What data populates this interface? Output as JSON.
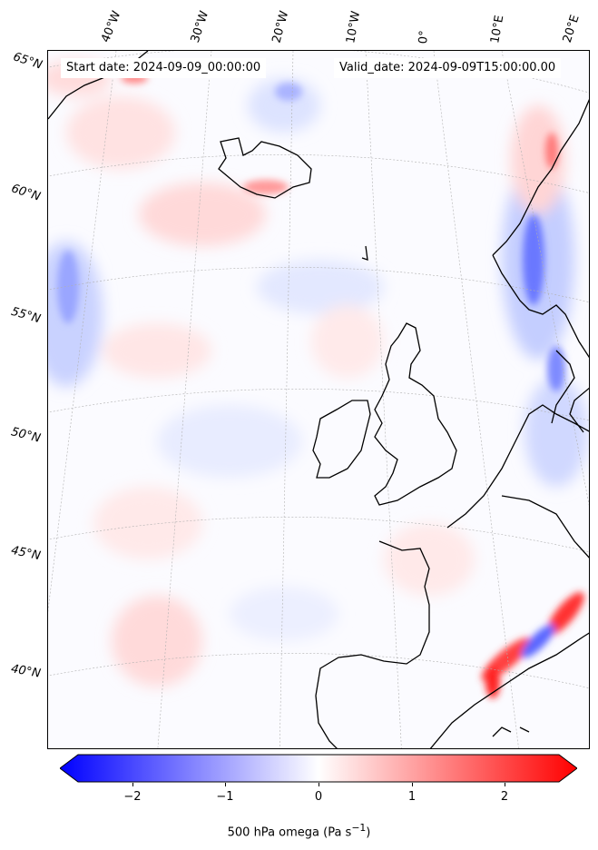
{
  "title_boxes": {
    "start": "Start date: 2024-09-09_00:00:00",
    "valid": "Valid_date: 2024-09-09T15:00:00.00"
  },
  "lon_labels": [
    "40°W",
    "30°W",
    "20°W",
    "10°W",
    "0°",
    "10°E",
    "20°E"
  ],
  "lat_labels": [
    "65°N",
    "60°N",
    "55°N",
    "50°N",
    "45°N",
    "40°N"
  ],
  "colorbar": {
    "label": "500 hPa omega (Pa s",
    "label_sup": "−1",
    "label_end": ")",
    "ticks": [
      "−2",
      "−1",
      "0",
      "1",
      "2"
    ],
    "range": [
      -2.5,
      2.5
    ],
    "low_color": "#0000ff",
    "mid_color": "#ffffff",
    "high_color": "#ff0000"
  },
  "colors": {
    "coastline": "#000000",
    "gridline": "#b0b0b0"
  }
}
